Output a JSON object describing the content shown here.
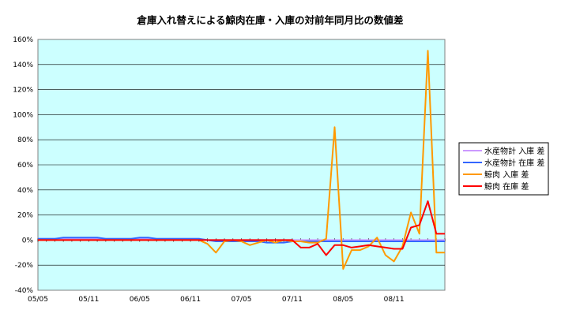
{
  "chart_data": {
    "type": "line",
    "title": "倉庫入れ替えによる鯨肉在庫・入庫の対前年同月比の数値差",
    "xlabel": "",
    "ylabel": "",
    "ylim": [
      -40,
      160
    ],
    "y_ticks": [
      "-40%",
      "-20%",
      "0%",
      "20%",
      "40%",
      "60%",
      "80%",
      "100%",
      "120%",
      "140%",
      "160%"
    ],
    "y_tick_values": [
      -40,
      -20,
      0,
      20,
      40,
      60,
      80,
      100,
      120,
      140,
      160
    ],
    "x_tick_labels": [
      "05/05",
      "05/11",
      "06/05",
      "06/11",
      "07/05",
      "07/11",
      "08/05",
      "08/11"
    ],
    "x_tick_indices": [
      0,
      6,
      12,
      18,
      24,
      30,
      36,
      42
    ],
    "x_count": 49,
    "grid": true,
    "legend_position": "right",
    "plot_background": "#ccffff",
    "series": [
      {
        "name": "水産物計 入庫 差",
        "color": "#cc99ff",
        "values": [
          1,
          1,
          1,
          1,
          1,
          1,
          1,
          1,
          1,
          1,
          1,
          1,
          1,
          1,
          1,
          1,
          1,
          1,
          1,
          1,
          0,
          0,
          0,
          0,
          0,
          0,
          0,
          0,
          0,
          0,
          0,
          0,
          0,
          0,
          0,
          0,
          0,
          0,
          0,
          0,
          0,
          0,
          0,
          0,
          0,
          0,
          0,
          0,
          0
        ]
      },
      {
        "name": "水産物計 在庫 差",
        "color": "#3366ff",
        "values": [
          1,
          1,
          1,
          2,
          2,
          2,
          2,
          2,
          1,
          1,
          1,
          1,
          2,
          2,
          1,
          1,
          1,
          1,
          1,
          1,
          0,
          -1,
          -1,
          -1,
          -1,
          -1,
          -1,
          -2,
          -2,
          -2,
          -1,
          -1,
          -1,
          -1,
          -1,
          -1,
          -1,
          -1,
          -1,
          -1,
          -1,
          -1,
          -1,
          -1,
          -1,
          -1,
          -1,
          -1,
          -1
        ]
      },
      {
        "name": "鯨肉 入庫 差",
        "color": "#ff9900",
        "values": [
          0,
          0,
          0,
          0,
          0,
          0,
          0,
          0,
          0,
          0,
          0,
          0,
          0,
          0,
          0,
          0,
          0,
          0,
          0,
          0,
          -3,
          -10,
          -1,
          0,
          -1,
          -4,
          -2,
          0,
          -2,
          0,
          -1,
          -1,
          -2,
          -2,
          1,
          90,
          -23,
          -8,
          -8,
          -5,
          2,
          -12,
          -17,
          -5,
          22,
          5,
          151,
          -10,
          -10
        ]
      },
      {
        "name": "鯨肉 在庫 差",
        "color": "#ff0000",
        "values": [
          0,
          0,
          0,
          0,
          0,
          0,
          0,
          0,
          0,
          0,
          0,
          0,
          0,
          0,
          0,
          0,
          0,
          0,
          0,
          0,
          0,
          0,
          0,
          0,
          0,
          0,
          0,
          0,
          0,
          0,
          0,
          -6,
          -6,
          -3,
          -12,
          -4,
          -4,
          -6,
          -5,
          -4,
          -5,
          -6,
          -7,
          -7,
          10,
          12,
          31,
          5,
          5
        ]
      }
    ]
  }
}
